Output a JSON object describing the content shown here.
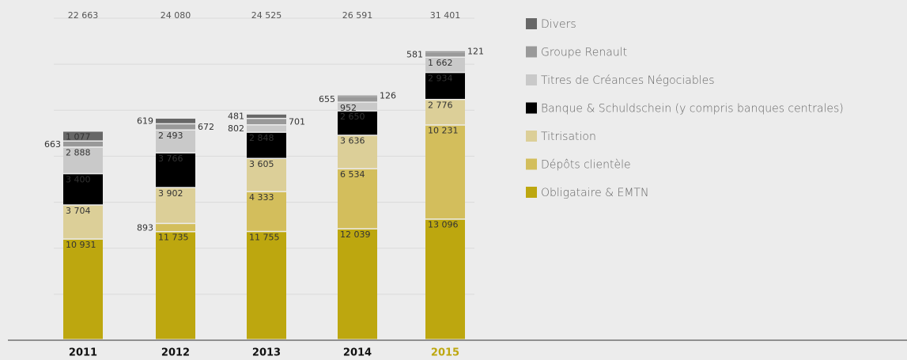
{
  "chart_data": {
    "type": "stacked-bar",
    "categories": [
      "2011",
      "2012",
      "2013",
      "2014",
      "2015"
    ],
    "series": [
      {
        "name": "Obligataire & EMTN",
        "color": "#bda70f",
        "label_color": "#ffffff",
        "values": [
          10931,
          11735,
          11755,
          12039,
          13096
        ],
        "value_labels": [
          "10 931",
          "11 735",
          "11 755",
          "12 039",
          "13 096"
        ]
      },
      {
        "name": "Dépôts clientèle",
        "color": "#d3be5c",
        "label_color": "#ffffff",
        "values": [
          null,
          893,
          4333,
          6534,
          10231
        ],
        "value_labels": [
          null,
          "893",
          "4 333",
          "6 534",
          "10 231"
        ]
      },
      {
        "name": "Titrisation",
        "color": "#dccf98",
        "label_color": "#222222",
        "values": [
          3704,
          3902,
          3605,
          3636,
          2776
        ],
        "value_labels": [
          "3 704",
          "3 902",
          "3 605",
          "3 636",
          "2 776"
        ]
      },
      {
        "name": "Banque & Schuldschein (y compris banques centrales)",
        "color": "#000000",
        "label_color": "#ffffff",
        "values": [
          3400,
          3766,
          2848,
          2650,
          2934
        ],
        "value_labels": [
          "3 400",
          "3 766",
          "2 848",
          "2 650",
          "2 934"
        ]
      },
      {
        "name": "Titres de Créances Négociables",
        "color": "#c9c9c9",
        "label_color": "#222222",
        "values": [
          2888,
          2493,
          802,
          952,
          1662
        ],
        "value_labels": [
          "2 888",
          "2 493",
          "802",
          "952",
          "1 662"
        ]
      },
      {
        "name": "Groupe Renault",
        "color": "#999999",
        "label_color": "#ffffff",
        "values": [
          663,
          672,
          701,
          655,
          581
        ],
        "value_labels": [
          "663",
          "672",
          "701",
          "655",
          "581"
        ]
      },
      {
        "name": "Divers",
        "color": "#676767",
        "label_color": "#ffffff",
        "values": [
          1077,
          619,
          481,
          126,
          121
        ],
        "value_labels": [
          "1 077",
          "619",
          "481",
          "126",
          "121"
        ]
      }
    ],
    "totals": [
      22663,
      24080,
      24525,
      26591,
      31401
    ],
    "total_labels": [
      "22 663",
      "24 080",
      "24 525",
      "26 591",
      "31 401"
    ],
    "ylim": [
      0,
      35000
    ],
    "yticks": [
      0,
      5000,
      10000,
      15000,
      20000,
      25000,
      30000,
      35000
    ],
    "grid": true
  }
}
